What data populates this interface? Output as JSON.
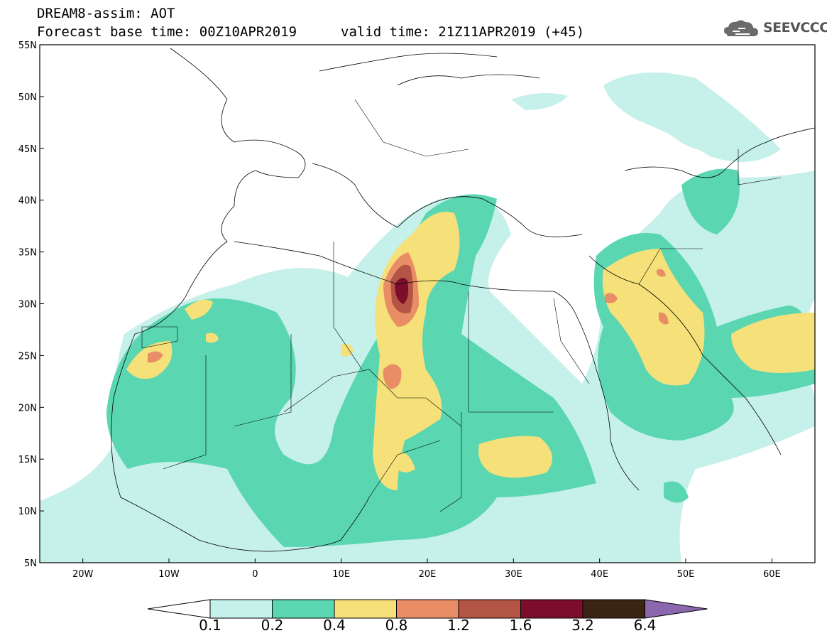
{
  "header": {
    "title": "DREAM8-assim: AOT",
    "base_time": "Forecast base time: 00Z10APR2019",
    "valid_time": "valid time: 21Z11APR2019 (+45)"
  },
  "logo": {
    "text": "SEEVCCC",
    "icon": "cloud-icon"
  },
  "map": {
    "lat_labels": [
      "55N",
      "50N",
      "45N",
      "40N",
      "35N",
      "30N",
      "25N",
      "20N",
      "15N",
      "10N",
      "5N"
    ],
    "lon_labels": [
      "20W",
      "10W",
      "0",
      "10E",
      "20E",
      "30E",
      "40E",
      "50E",
      "60E"
    ],
    "lon_range": [
      -25,
      65
    ],
    "lat_range": [
      5,
      55
    ]
  },
  "colorbar": {
    "levels": [
      "0.1",
      "0.2",
      "0.4",
      "0.8",
      "1.2",
      "1.6",
      "3.2",
      "6.4"
    ],
    "colors": [
      "#c6f0ea",
      "#5ad6b0",
      "#f5e079",
      "#e98d66",
      "#b35545",
      "#7c0e2c",
      "#3b2414",
      "#8b67ae"
    ]
  }
}
